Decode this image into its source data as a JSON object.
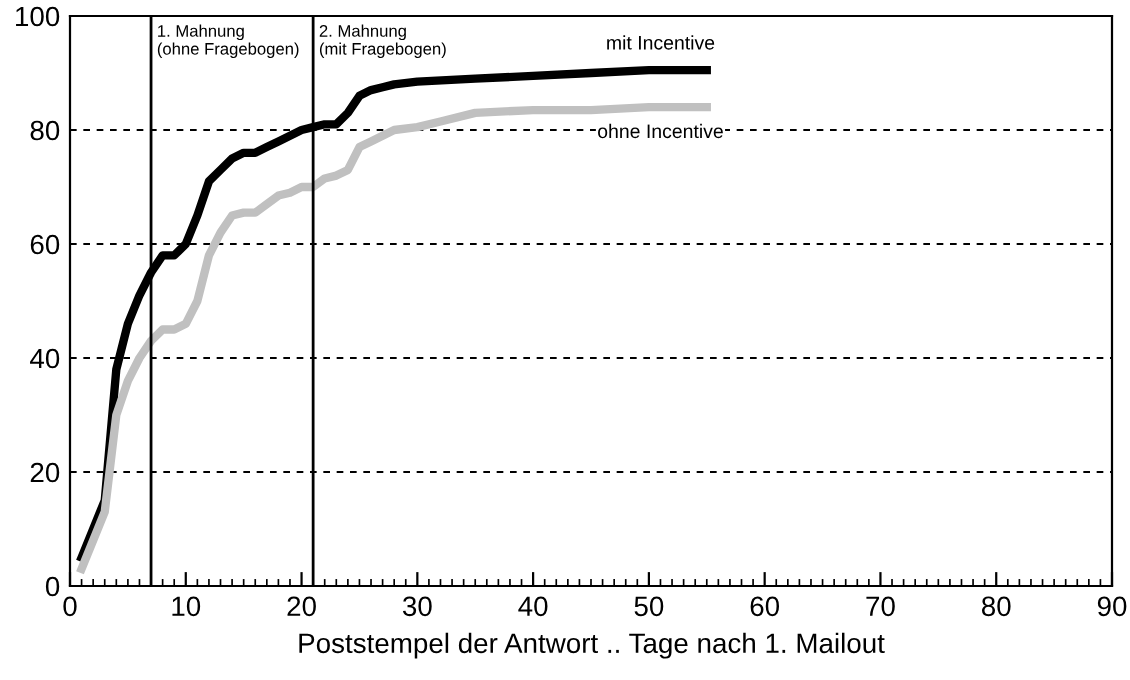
{
  "chart_data": {
    "type": "line",
    "xlabel": "Poststempel der Antwort .. Tage nach 1. Mailout",
    "xlim": [
      0,
      90
    ],
    "xticks": [
      0,
      10,
      20,
      30,
      40,
      50,
      60,
      70,
      80,
      90
    ],
    "ylim": [
      0,
      100
    ],
    "yticks": [
      0,
      20,
      40,
      60,
      80,
      100
    ],
    "grid": "y",
    "legend": false,
    "marker": "none",
    "line_style": "solid",
    "series": [
      {
        "name": "mit Incentive",
        "color": "#000000",
        "x": [
          1,
          2,
          3,
          4,
          5,
          6,
          7,
          8,
          9,
          10,
          11,
          12,
          13,
          14,
          15,
          16,
          17,
          18,
          19,
          20,
          21,
          22,
          23,
          24,
          25,
          26,
          27,
          28,
          30,
          35,
          40,
          45,
          50,
          55
        ],
        "values": [
          5,
          10,
          15,
          38,
          46,
          51,
          55,
          58,
          58,
          60,
          65,
          71,
          73,
          75,
          76,
          76,
          77,
          78,
          79,
          80,
          80.5,
          81,
          81,
          83,
          86,
          87,
          87.5,
          88,
          88.5,
          89,
          89.5,
          90,
          90.5,
          90.5
        ]
      },
      {
        "name": "ohne Incentive",
        "color": "#c0c0c0",
        "x": [
          1,
          2,
          3,
          4,
          5,
          6,
          7,
          8,
          9,
          10,
          11,
          12,
          13,
          14,
          15,
          16,
          17,
          18,
          19,
          20,
          21,
          22,
          23,
          24,
          25,
          26,
          27,
          28,
          30,
          32,
          35,
          40,
          45,
          50,
          55
        ],
        "values": [
          3,
          8,
          13,
          30,
          36,
          40,
          43,
          45,
          45,
          46,
          50,
          58,
          62,
          65,
          65.5,
          65.5,
          67,
          68.5,
          69,
          70,
          70,
          71.5,
          72,
          73,
          77,
          78,
          79,
          80,
          80.5,
          81.5,
          83,
          83.5,
          83.5,
          84,
          84
        ]
      }
    ],
    "ref_lines": [
      {
        "axis": "x",
        "value": 7,
        "label": "1. Mahnung\n(ohne Fragebogen)",
        "color": "#000000"
      },
      {
        "axis": "x",
        "value": 21,
        "label": "2. Mahnung\n(mit Fragebogen)",
        "color": "#000000"
      }
    ]
  }
}
